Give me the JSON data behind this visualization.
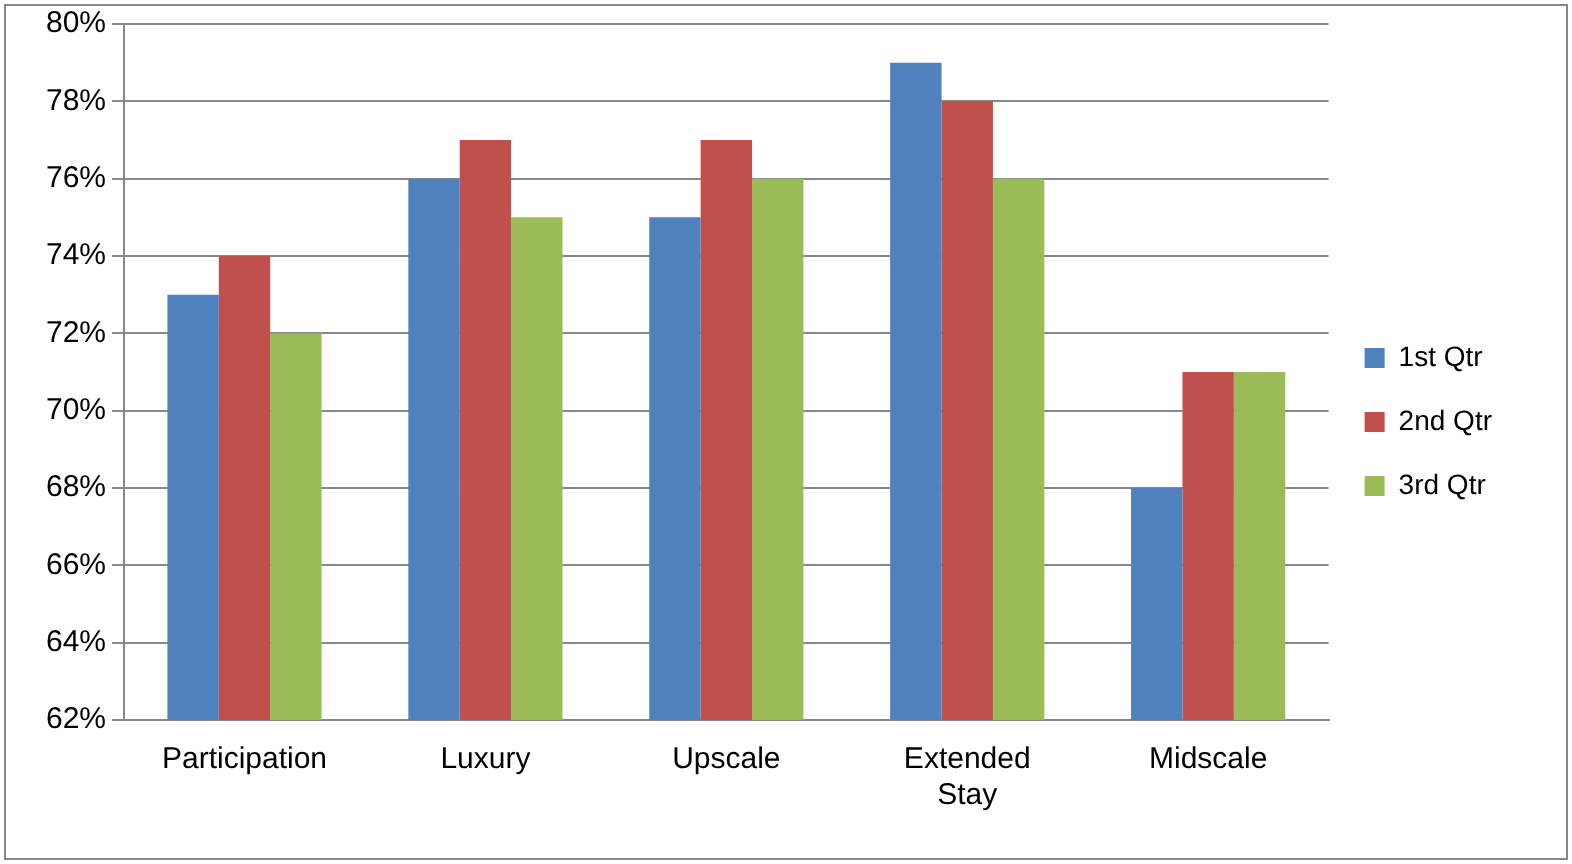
{
  "chart_data": {
    "type": "bar",
    "categories": [
      "Participation",
      "Luxury",
      "Upscale",
      "Extended Stay",
      "Midscale"
    ],
    "series": [
      {
        "name": "1st Qtr",
        "color": "#4f81bd",
        "values": [
          73,
          76,
          75,
          79,
          68
        ]
      },
      {
        "name": "2nd Qtr",
        "color": "#c0504d",
        "values": [
          74,
          77,
          77,
          78,
          71
        ]
      },
      {
        "name": "3rd Qtr",
        "color": "#9bbb59",
        "values": [
          72,
          75,
          76,
          76,
          71
        ]
      }
    ],
    "ylim": [
      62,
      80
    ],
    "yticks": [
      {
        "value": 62,
        "label": "62%"
      },
      {
        "value": 64,
        "label": "64%"
      },
      {
        "value": 66,
        "label": "66%"
      },
      {
        "value": 68,
        "label": "68%"
      },
      {
        "value": 70,
        "label": "70%"
      },
      {
        "value": 72,
        "label": "72%"
      },
      {
        "value": 74,
        "label": "74%"
      },
      {
        "value": 76,
        "label": "76%"
      },
      {
        "value": 78,
        "label": "78%"
      },
      {
        "value": 80,
        "label": "80%"
      }
    ],
    "grid": "y",
    "legend": "right"
  }
}
